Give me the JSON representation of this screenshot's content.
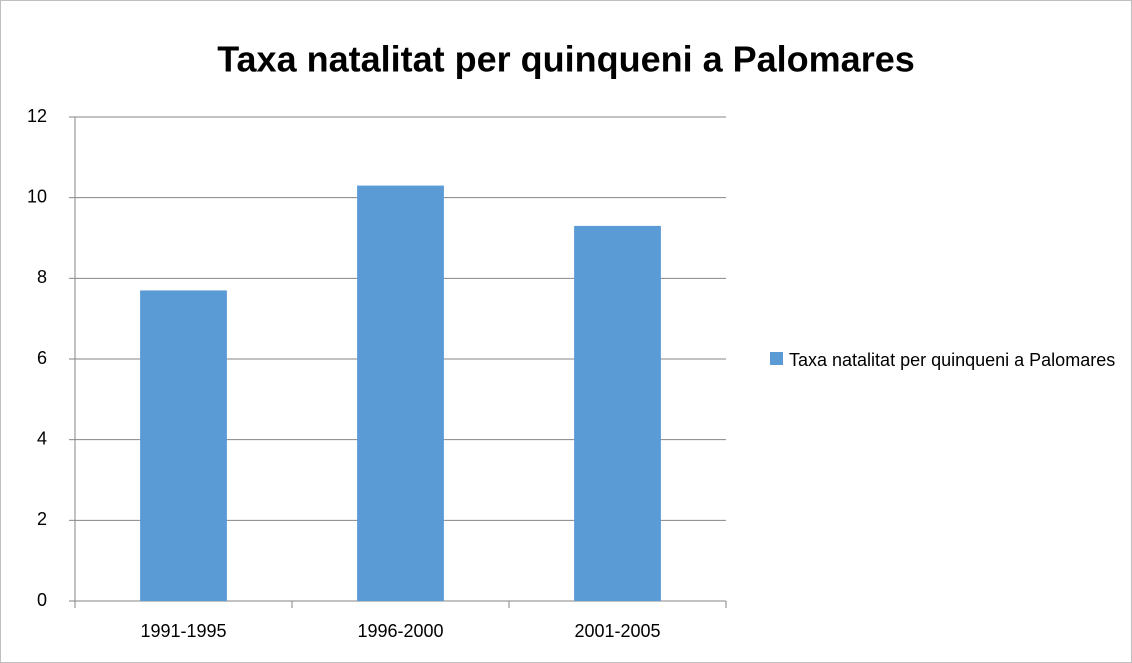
{
  "chart_data": {
    "type": "bar",
    "title": "Taxa natalitat per quinqueni a Palomares",
    "categories": [
      "1991-1995",
      "1996-2000",
      "2001-2005"
    ],
    "series": [
      {
        "name": "Taxa natalitat per quinqueni a Palomares",
        "color": "#5b9bd5",
        "values": [
          7.7,
          10.3,
          9.3
        ]
      }
    ],
    "ylim": [
      0,
      12
    ],
    "yticks": [
      0,
      2,
      4,
      6,
      8,
      10,
      12
    ],
    "grid": true,
    "legend": "right"
  }
}
